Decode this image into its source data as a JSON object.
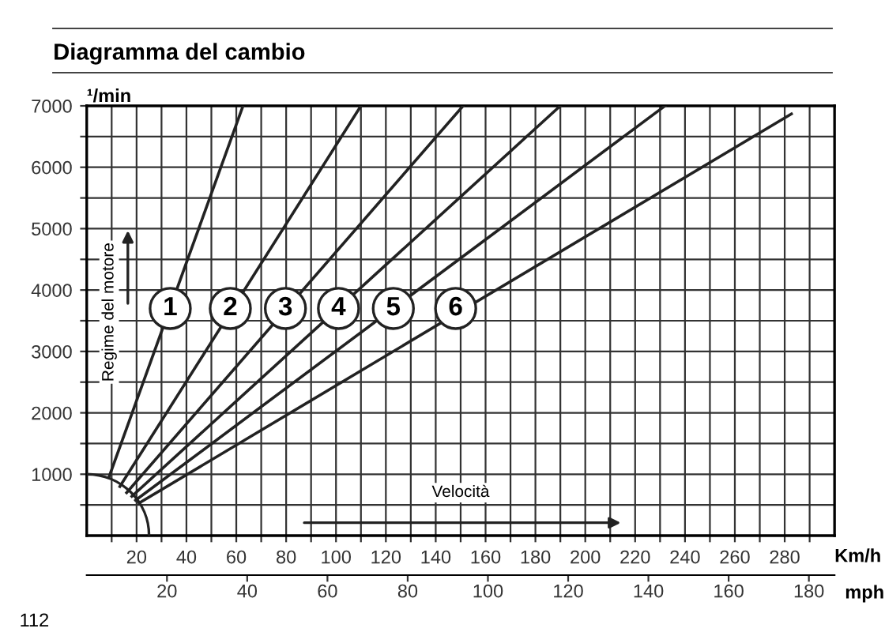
{
  "chart_data": {
    "type": "line",
    "title": "Diagramma del cambio",
    "xlabel": "Velocità",
    "ylabel": "Regime del motore",
    "x2label": "mph",
    "annotations": [
      "¹/min",
      "Km/h",
      "112",
      {
        "text": "1",
        "x": 33.5,
        "y": 3700
      },
      {
        "text": "2",
        "x": 57.6,
        "y": 3700
      },
      {
        "text": "3",
        "x": 79.7,
        "y": 3700
      },
      {
        "text": "4",
        "x": 101,
        "y": 3700
      },
      {
        "text": "5",
        "x": 123,
        "y": 3700
      },
      {
        "text": "6",
        "x": 148,
        "y": 3700
      }
    ],
    "series": [
      {
        "color": "#222222",
        "x": [
          8.9,
          62.7
        ],
        "values": [
          950,
          7000
        ]
      },
      {
        "color": "#222222",
        "x": [
          13.3,
          110
        ],
        "values": [
          800,
          7000
        ]
      },
      {
        "color": "#222222",
        "x": [
          16,
          151
        ],
        "values": [
          700,
          7000
        ]
      },
      {
        "color": "#222222",
        "x": [
          18.1,
          190
        ],
        "values": [
          640,
          7000
        ]
      },
      {
        "color": "#222222",
        "x": [
          19.6,
          232
        ],
        "values": [
          575,
          7000
        ]
      },
      {
        "color": "#222222",
        "x": [
          21,
          282.7
        ],
        "values": [
          530,
          6870
        ]
      }
    ],
    "xlim": [
      0,
      300
    ],
    "ylim": [
      0,
      7000
    ],
    "xticks": [
      {
        "value": 10,
        "label": null
      },
      20,
      {
        "value": 30,
        "label": null
      },
      40,
      {
        "value": 50,
        "label": null
      },
      60,
      {
        "value": 70,
        "label": null
      },
      80,
      {
        "value": 90,
        "label": null
      },
      100,
      {
        "value": 110,
        "label": null
      },
      120,
      {
        "value": 130,
        "label": null
      },
      140,
      {
        "value": 150,
        "label": null
      },
      160,
      {
        "value": 170,
        "label": null
      },
      180,
      {
        "value": 190,
        "label": null
      },
      200,
      {
        "value": 210,
        "label": null
      },
      220,
      {
        "value": 230,
        "label": null
      },
      240,
      {
        "value": 250,
        "label": null
      },
      260,
      {
        "value": 270,
        "label": null
      },
      280,
      {
        "value": 290,
        "label": null
      }
    ],
    "yticks": [
      {
        "value": 500,
        "label": null
      },
      1000,
      {
        "value": 1500,
        "label": null
      },
      2000,
      {
        "value": 2500,
        "label": null
      },
      3000,
      {
        "value": 3500,
        "label": null
      },
      4000,
      {
        "value": 4500,
        "label": null
      },
      5000,
      {
        "value": 5500,
        "label": null
      },
      6000,
      {
        "value": 6500,
        "label": null
      },
      7000
    ],
    "x2lim": [
      0,
      186.4
    ],
    "x2ticks": [
      20,
      40,
      60,
      80,
      100,
      120,
      140,
      160,
      180
    ],
    "grid": true,
    "marker": "none",
    "line_style": "solid"
  }
}
